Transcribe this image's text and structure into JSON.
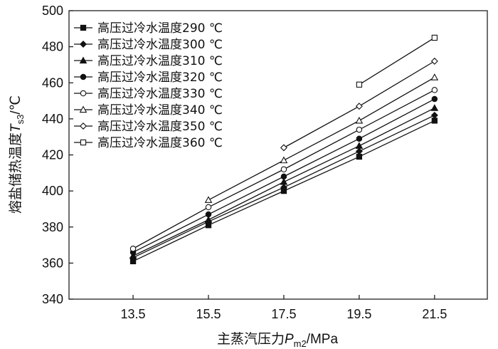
{
  "chart_data": {
    "type": "line",
    "x": [
      13.5,
      15.5,
      17.5,
      19.5,
      21.5
    ],
    "xticks": [
      "13.5",
      "15.5",
      "17.5",
      "19.5",
      "21.5"
    ],
    "xlim": [
      11.8,
      22.9
    ],
    "ylim": [
      340,
      500
    ],
    "yticks": [
      340,
      360,
      380,
      400,
      420,
      440,
      460,
      480,
      500
    ],
    "xlabel": {
      "main": "主蒸汽压力",
      "var": "P",
      "sub": "m2",
      "unit": "/MPa"
    },
    "ylabel": {
      "main": "熔盐储热温度",
      "var": "T",
      "sub": "s3",
      "unit": "/℃"
    },
    "legend_position": "top-left",
    "grid": false,
    "series": [
      {
        "name": "高压过冷水温度290 ℃",
        "marker": "square-filled",
        "values": [
          361,
          381,
          400,
          419,
          439
        ]
      },
      {
        "name": "高压过冷水温度300 ℃",
        "marker": "diamond-filled",
        "values": [
          363,
          383,
          402,
          422,
          442
        ]
      },
      {
        "name": "高压过冷水温度310 ℃",
        "marker": "triangle-filled",
        "values": [
          364,
          384,
          405,
          425,
          446
        ]
      },
      {
        "name": "高压过冷水温度320 ℃",
        "marker": "circle-filled",
        "values": [
          366,
          387,
          408,
          429,
          451
        ]
      },
      {
        "name": "高压过冷水温度330 ℃",
        "marker": "circle-open",
        "values": [
          368,
          391,
          412,
          434,
          456
        ]
      },
      {
        "name": "高压过冷水温度340 ℃",
        "marker": "triangle-open",
        "values": [
          null,
          395,
          417,
          439,
          463
        ]
      },
      {
        "name": "高压过冷水温度350 ℃",
        "marker": "diamond-open",
        "values": [
          null,
          null,
          424,
          447,
          472
        ]
      },
      {
        "name": "高压过冷水温度360 ℃",
        "marker": "square-open",
        "values": [
          null,
          null,
          null,
          459,
          485
        ]
      }
    ]
  }
}
